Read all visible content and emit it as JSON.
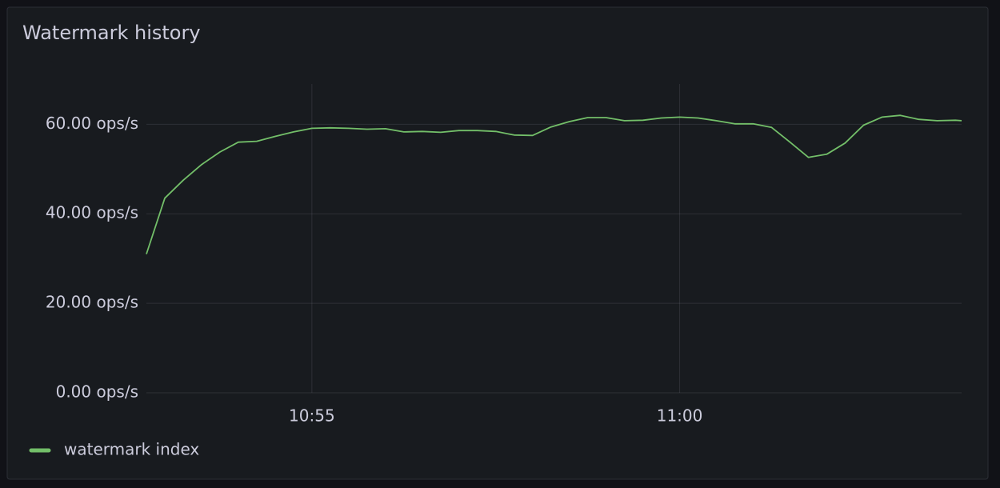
{
  "chart_data": {
    "type": "line",
    "title": "Watermark history",
    "x": [
      "10:52:45",
      "10:53:00",
      "10:53:15",
      "10:53:30",
      "10:53:45",
      "10:54:00",
      "10:54:15",
      "10:54:30",
      "10:54:45",
      "10:55:00",
      "10:55:15",
      "10:55:30",
      "10:55:45",
      "10:56:00",
      "10:56:15",
      "10:56:30",
      "10:56:45",
      "10:57:00",
      "10:57:15",
      "10:57:30",
      "10:57:45",
      "10:58:00",
      "10:58:15",
      "10:58:30",
      "10:58:45",
      "10:59:00",
      "10:59:15",
      "10:59:30",
      "10:59:45",
      "11:00:00",
      "11:00:15",
      "11:00:30",
      "11:00:45",
      "11:01:00",
      "11:01:15",
      "11:01:30",
      "11:01:45",
      "11:02:00",
      "11:02:15",
      "11:02:30",
      "11:02:45",
      "11:03:00",
      "11:03:15",
      "11:03:30",
      "11:03:45",
      "11:03:50"
    ],
    "series": [
      {
        "name": "watermark index",
        "color": "#73bf69",
        "values": [
          31,
          43.5,
          47.5,
          51,
          53.8,
          56,
          56.2,
          57.3,
          58.3,
          59.1,
          59.2,
          59.1,
          58.9,
          59.0,
          58.3,
          58.4,
          58.2,
          58.6,
          58.6,
          58.4,
          57.6,
          57.5,
          59.4,
          60.6,
          61.5,
          61.5,
          60.8,
          60.9,
          61.4,
          61.6,
          61.4,
          60.8,
          60.1,
          60.1,
          59.3,
          56.0,
          52.6,
          53.3,
          55.8,
          59.8,
          61.6,
          62.0,
          61.1,
          60.8,
          60.9,
          60.8
        ]
      }
    ],
    "xlim": [
      "10:52:45",
      "11:03:50"
    ],
    "xticks": [
      "10:55",
      "11:00"
    ],
    "ylim": [
      0,
      69
    ],
    "yticks": [
      {
        "value": 0,
        "label": "0.00 ops/s"
      },
      {
        "value": 20,
        "label": "20.00 ops/s"
      },
      {
        "value": 40,
        "label": "40.00 ops/s"
      },
      {
        "value": 60,
        "label": "60.00 ops/s"
      }
    ],
    "grid": true,
    "legend": "bottom-left"
  }
}
